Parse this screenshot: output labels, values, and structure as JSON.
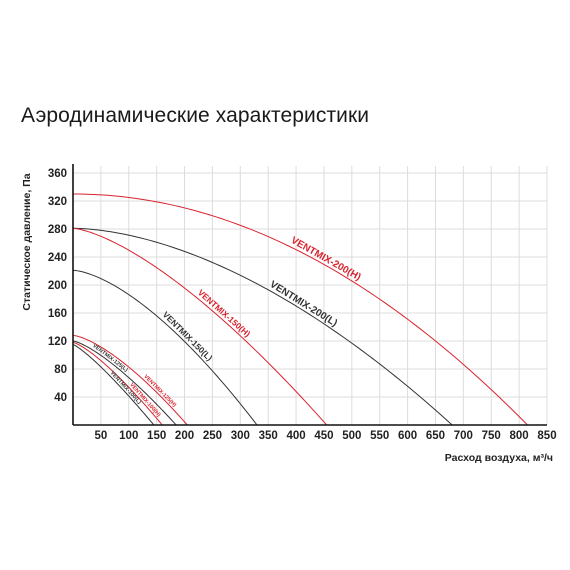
{
  "chart_data": {
    "type": "line",
    "title": "Аэродинамические характеристики",
    "xlabel": "Расход воздуха, м³/ч",
    "ylabel": "Статическое давление, Па",
    "xlim": [
      0,
      850
    ],
    "ylim": [
      0,
      370
    ],
    "xticks": [
      "50",
      "100",
      "150",
      "200",
      "250",
      "300",
      "350",
      "400",
      "450",
      "500",
      "550",
      "600",
      "650",
      "700",
      "750",
      "800",
      "850"
    ],
    "yticks": [
      "40",
      "80",
      "120",
      "160",
      "200",
      "240",
      "280",
      "320",
      "360"
    ],
    "grid": true,
    "colors": {
      "high": "#d9232e",
      "low": "#333333",
      "grid": "#dcdcdc"
    },
    "series": [
      {
        "name": "VENTMIX-200(H)",
        "color": "high",
        "p0": 330,
        "qmax": 815,
        "exp": 2.0
      },
      {
        "name": "VENTMIX-200(L)",
        "color": "low",
        "p0": 281,
        "qmax": 680,
        "exp": 1.75
      },
      {
        "name": "VENTMIX-150(H)",
        "color": "high",
        "p0": 281,
        "qmax": 455,
        "exp": 1.45
      },
      {
        "name": "VENTMIX-150(L)",
        "color": "low",
        "p0": 221,
        "qmax": 330,
        "exp": 1.55
      },
      {
        "name": "VENTMIX-125(H)",
        "color": "high",
        "p0": 128,
        "qmax": 205,
        "exp": 1.45
      },
      {
        "name": "VENTMIX-125(L)",
        "color": "low",
        "p0": 120,
        "qmax": 185,
        "exp": 1.35
      },
      {
        "name": "VENTMIX-100(H)",
        "color": "high",
        "p0": 118,
        "qmax": 160,
        "exp": 1.3
      },
      {
        "name": "VENTMIX-100(L)",
        "color": "low",
        "p0": 115,
        "qmax": 145,
        "exp": 1.2
      }
    ]
  }
}
